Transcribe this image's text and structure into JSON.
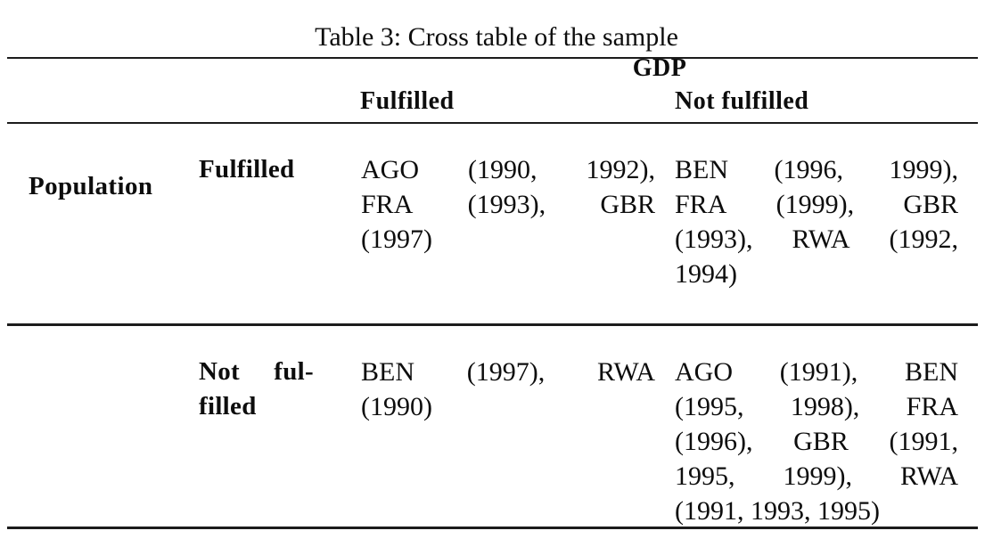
{
  "caption": "Table 3: Cross table of the sample",
  "table": {
    "column_group": {
      "label": "GDP"
    },
    "row_group": {
      "label": "Population"
    },
    "column_headers": [
      {
        "label": "Fulfilled"
      },
      {
        "label": "Not fulfilled"
      }
    ],
    "rows": [
      {
        "header": {
          "text": "Fulfilled",
          "lines": [
            "Fulfilled"
          ]
        },
        "cells": [
          {
            "text": "AGO (1990, 1992), FRA (1993), GBR (1997)",
            "lines": [
              "AGO (1990, 1992),",
              "FRA (1993), GBR",
              "(1997)"
            ]
          },
          {
            "text": "BEN (1996, 1999), FRA (1999), GBR (1993), RWA (1992, 1994)",
            "lines": [
              "BEN (1996, 1999),",
              "FRA (1999), GBR",
              "(1993), RWA (1992,",
              "1994)"
            ]
          }
        ]
      },
      {
        "header": {
          "text": "Not fulfilled",
          "lines": [
            "Not ful-",
            "filled"
          ]
        },
        "cells": [
          {
            "text": "BEN (1997), RWA (1990)",
            "lines": [
              "BEN (1997), RWA",
              "(1990)"
            ]
          },
          {
            "text": "AGO (1991), BEN (1995, 1998), FRA (1996), GBR (1991, 1995, 1999), RWA (1991, 1993, 1995)",
            "lines": [
              "AGO (1991), BEN",
              "(1995, 1998), FRA",
              "(1996), GBR (1991,",
              "1995, 1999), RWA",
              "(1991, 1993, 1995)"
            ]
          }
        ]
      }
    ]
  },
  "colors": {
    "rule": "#1c1c1c",
    "text": "#0d0d0d",
    "background": "#ffffff"
  }
}
